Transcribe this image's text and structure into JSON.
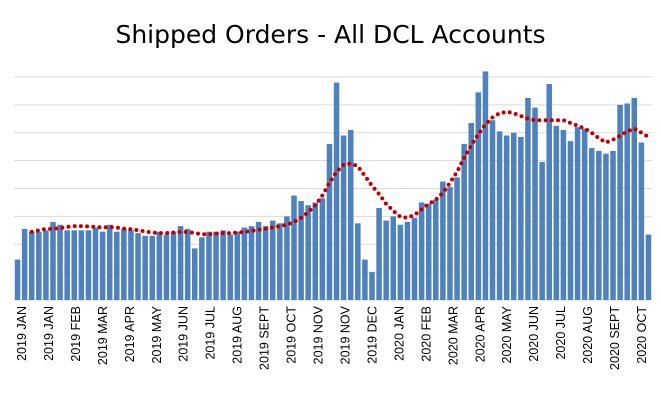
{
  "chart_data": {
    "type": "bar",
    "title": "Shipped Orders - All DCL Accounts",
    "xlabel": "",
    "ylabel": "",
    "ylim": [
      0,
      8
    ],
    "grid": true,
    "legend": "none",
    "bar_color": "#4f81bd",
    "trend_color": "#c00000",
    "tick_labels": [
      "2019 JAN",
      "2019 JAN",
      "2019 FEB",
      "2019 MAR",
      "2019 APR",
      "2019 MAY",
      "2019 JUN",
      "2019 JUL",
      "2019 AUG",
      "2019 SEPT",
      "2019 OCT",
      "2019 NOV",
      "2019 NOV",
      "2019 DEC",
      "2020 JAN",
      "2020 FEB",
      "2020 MAR",
      "2020 APR",
      "2020 MAY",
      "2020 JUN",
      "2020 JUL",
      "2020 AUG",
      "2020 SEPT",
      "2020 OCT"
    ],
    "values": [
      1.45,
      2.55,
      2.45,
      2.45,
      2.5,
      2.8,
      2.7,
      2.5,
      2.5,
      2.5,
      2.5,
      2.6,
      2.45,
      2.7,
      2.45,
      2.55,
      2.5,
      2.4,
      2.3,
      2.3,
      2.45,
      2.35,
      2.45,
      2.65,
      2.55,
      1.85,
      2.25,
      2.45,
      2.45,
      2.5,
      2.35,
      2.45,
      2.6,
      2.65,
      2.8,
      2.65,
      2.85,
      2.75,
      3.0,
      3.75,
      3.55,
      3.4,
      3.5,
      3.65,
      5.6,
      7.8,
      5.9,
      6.1,
      2.75,
      1.45,
      1.0,
      3.3,
      2.85,
      3.0,
      2.7,
      2.8,
      2.95,
      3.5,
      3.45,
      3.6,
      4.25,
      4.05,
      4.4,
      5.6,
      6.35,
      7.45,
      8.2,
      6.45,
      6.05,
      5.9,
      6.0,
      5.85,
      7.25,
      6.9,
      4.95,
      7.75,
      6.25,
      6.1,
      5.7,
      6.2,
      6.15,
      5.45,
      5.35,
      5.25,
      5.35,
      7.0,
      7.05,
      7.25,
      5.65,
      2.35
    ],
    "trend": [
      null,
      null,
      2.45,
      2.5,
      2.55,
      2.55,
      2.58,
      2.62,
      2.65,
      2.65,
      2.64,
      2.62,
      2.6,
      2.62,
      2.6,
      2.56,
      2.54,
      2.5,
      2.46,
      2.42,
      2.4,
      2.4,
      2.42,
      2.44,
      2.44,
      2.4,
      2.36,
      2.36,
      2.38,
      2.4,
      2.4,
      2.42,
      2.44,
      2.48,
      2.52,
      2.56,
      2.6,
      2.65,
      2.7,
      2.8,
      2.95,
      3.15,
      3.4,
      3.75,
      4.2,
      4.6,
      4.85,
      4.9,
      4.8,
      4.45,
      4.1,
      3.8,
      3.45,
      3.2,
      2.98,
      2.95,
      3.05,
      3.25,
      3.45,
      3.6,
      3.85,
      4.2,
      4.6,
      5.1,
      5.55,
      5.95,
      6.3,
      6.55,
      6.7,
      6.75,
      6.7,
      6.6,
      6.5,
      6.45,
      6.45,
      6.45,
      6.45,
      6.45,
      6.35,
      6.25,
      6.15,
      6.0,
      5.8,
      5.65,
      5.75,
      5.9,
      6.05,
      6.15,
      6.0,
      5.85
    ]
  }
}
